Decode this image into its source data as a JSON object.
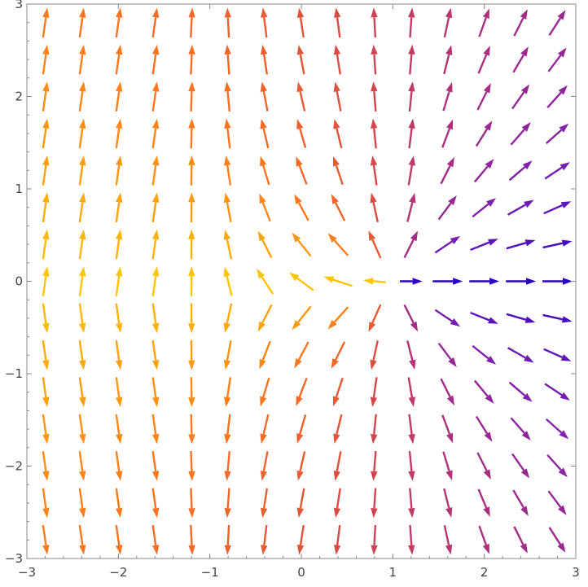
{
  "chart_data": {
    "type": "vector-field",
    "title": "",
    "xlabel": "",
    "ylabel": "",
    "xlim": [
      -3,
      3
    ],
    "ylim": [
      -3,
      3
    ],
    "x_ticks": [
      -3,
      -2,
      -1,
      0,
      1,
      2,
      3
    ],
    "y_ticks": [
      -3,
      -2,
      -1,
      0,
      1,
      2,
      3
    ],
    "x_tick_labels": [
      "−3",
      "−2",
      "−1",
      "0",
      "1",
      "2",
      "3"
    ],
    "y_tick_labels": [
      "−3",
      "−2",
      "−1",
      "0",
      "1",
      "2",
      "3"
    ],
    "grid": false,
    "frame": true,
    "source_point": [
      1,
      0
    ],
    "grid_points_per_axis": 15,
    "color_scheme": {
      "description": "color varies with angle around the source point (1, 0): blue/violet to the right of it, through magenta, to orange and yellow on the far left",
      "stops": [
        "#2a00c8",
        "#7a1fb0",
        "#b0307a",
        "#e0503a",
        "#ff7a1a",
        "#ffc400"
      ]
    }
  }
}
